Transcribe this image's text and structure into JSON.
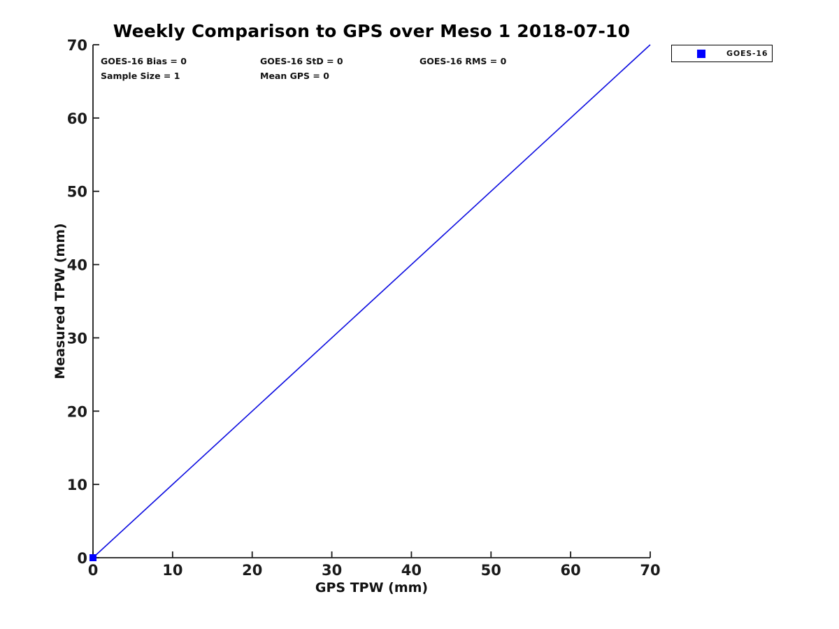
{
  "title": "Weekly Comparison to GPS over Meso 1 2018-07-10",
  "annotations": {
    "bias": "GOES-16 Bias = 0",
    "std": "GOES-16 StD = 0",
    "rms": "GOES-16 RMS = 0",
    "sample_size": "Sample Size = 1",
    "mean_gps": "Mean GPS = 0"
  },
  "legend": {
    "position": "outside-top-right",
    "entries": [
      {
        "label": "GOES-16",
        "marker": "filled-square",
        "color": "#0000ff"
      }
    ]
  },
  "colors": {
    "axis": "#1a1a1a",
    "tick_label": "#1a1a1a",
    "line": "#0a0ae0",
    "marker": "#0000ff",
    "background": "#ffffff"
  },
  "chart_data": {
    "type": "scatter",
    "title": "Weekly Comparison to GPS over Meso 1 2018-07-10",
    "xlabel": "GPS TPW (mm)",
    "ylabel": "Measured TPW (mm)",
    "xlim": [
      0,
      70
    ],
    "ylim": [
      0,
      70
    ],
    "xticks": [
      0,
      10,
      20,
      30,
      40,
      50,
      60,
      70
    ],
    "yticks": [
      0,
      10,
      20,
      30,
      40,
      50,
      60,
      70
    ],
    "grid": false,
    "legend_position": "outside-top-right",
    "series": [
      {
        "name": "one-to-one-line",
        "type": "line",
        "color": "#0a0ae0",
        "line_width": 1.6,
        "points": [
          [
            0,
            0
          ],
          [
            70,
            70
          ]
        ]
      },
      {
        "name": "GOES-16",
        "type": "scatter",
        "marker": "square",
        "marker_size": 10,
        "color": "#0000ff",
        "points": [
          [
            0,
            0
          ]
        ]
      }
    ]
  }
}
